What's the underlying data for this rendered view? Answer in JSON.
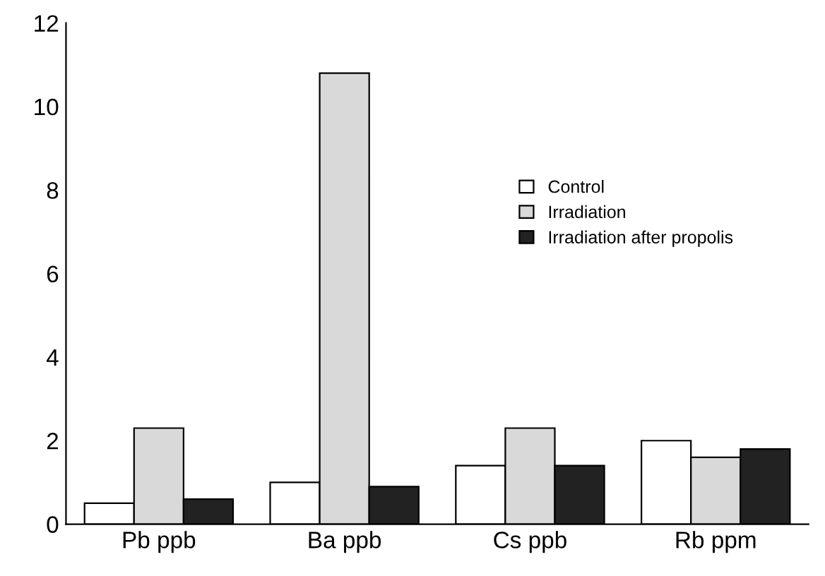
{
  "chart_data": {
    "type": "bar",
    "categories": [
      "Pb ppb",
      "Ba ppb",
      "Cs ppb",
      "Rb ppm"
    ],
    "series": [
      {
        "name": "Control",
        "color": "#ffffff",
        "values": [
          0.5,
          1.0,
          1.4,
          2.0
        ]
      },
      {
        "name": "Irradiation",
        "color": "#d9d9d9",
        "values": [
          2.3,
          10.8,
          2.3,
          1.6
        ]
      },
      {
        "name": "Irradiation after propolis",
        "color": "#222222",
        "values": [
          0.6,
          0.9,
          1.4,
          1.8
        ]
      }
    ],
    "ylim": [
      0,
      12
    ],
    "yticks": [
      0,
      2,
      4,
      6,
      8,
      10,
      12
    ],
    "legend": "right",
    "grid": false
  }
}
